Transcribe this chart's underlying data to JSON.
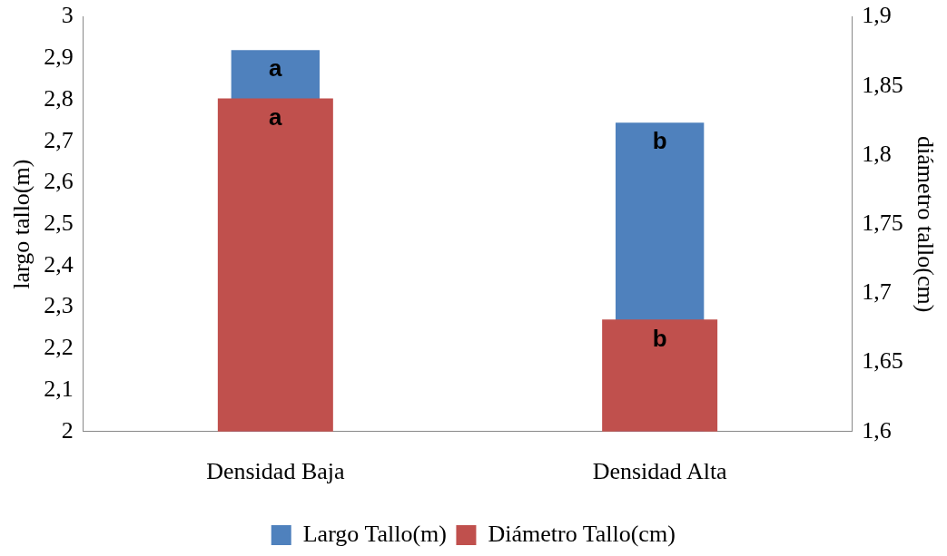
{
  "chart_data": {
    "type": "bar",
    "categories": [
      "Densidad Baja",
      "Densidad Alta"
    ],
    "ylabel": "largo tallo(m)",
    "y2label": "diámetro tallo(cm)",
    "series": [
      {
        "name": "Largo Tallo(m)",
        "color": "#4f81bd",
        "values": [
          2.92,
          2.745
        ]
      },
      {
        "name": "Diámetro Tallo(cm)",
        "color": "#c0504d",
        "values": [
          1.841,
          1.681
        ],
        "axis": "y2"
      }
    ],
    "ylim": [
      2,
      3
    ],
    "yticks": [
      {
        "value": 2,
        "label": "2"
      },
      {
        "value": 2.1,
        "label": "2,1"
      },
      {
        "value": 2.2,
        "label": "2,2"
      },
      {
        "value": 2.3,
        "label": "2,3"
      },
      {
        "value": 2.4,
        "label": "2,4"
      },
      {
        "value": 2.5,
        "label": "2,5"
      },
      {
        "value": 2.6,
        "label": "2,6"
      },
      {
        "value": 2.7,
        "label": "2,7"
      },
      {
        "value": 2.8,
        "label": "2,8"
      },
      {
        "value": 2.9,
        "label": "2,9"
      },
      {
        "value": 3,
        "label": "3"
      }
    ],
    "y2lim": [
      1.6,
      1.9
    ],
    "y2ticks": [
      {
        "value": 1.6,
        "label": "1,6"
      },
      {
        "value": 1.65,
        "label": "1,65"
      },
      {
        "value": 1.7,
        "label": "1,7"
      },
      {
        "value": 1.75,
        "label": "1,75"
      },
      {
        "value": 1.8,
        "label": "1,8"
      },
      {
        "value": 1.85,
        "label": "1,85"
      },
      {
        "value": 1.9,
        "label": "1,9"
      }
    ],
    "annotations": [
      "a",
      "a",
      "b",
      "b"
    ],
    "grid": false,
    "legend": "bottom"
  }
}
